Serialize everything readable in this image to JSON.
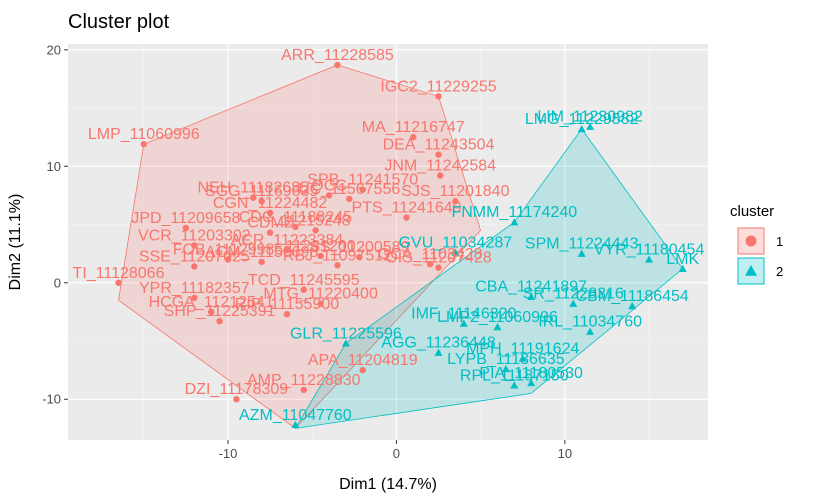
{
  "chart_data": {
    "type": "scatter",
    "title": "Cluster plot",
    "xlabel": "Dim1 (14.7%)",
    "ylabel": "Dim2 (11.1%)",
    "xlim": [
      -19.5,
      18.5
    ],
    "ylim": [
      -13.5,
      20.5
    ],
    "xticks": [
      -10,
      0,
      10
    ],
    "yticks": [
      -10,
      0,
      10,
      20
    ],
    "grid": true,
    "legend": {
      "title": "cluster",
      "position": "right",
      "entries": [
        "1",
        "2"
      ]
    },
    "colors": {
      "1": "#F8766D",
      "2": "#00BFC4"
    },
    "series": [
      {
        "name": "1",
        "points": [
          {
            "x": -3.5,
            "y": 18.7,
            "label": "ARR_11228585"
          },
          {
            "x": 2.5,
            "y": 16.0,
            "label": "IGC2_11229255"
          },
          {
            "x": -15.0,
            "y": 11.9,
            "label": "LMP_11060996"
          },
          {
            "x": 1.0,
            "y": 12.5,
            "label": "MA_11216747"
          },
          {
            "x": 2.5,
            "y": 11.0,
            "label": "DEA_11243504"
          },
          {
            "x": 2.6,
            "y": 9.2,
            "label": "JNM_11242584"
          },
          {
            "x": -2.0,
            "y": 8.0,
            "label": "SPB_11241570"
          },
          {
            "x": -8.5,
            "y": 7.3,
            "label": "NEH_11182685"
          },
          {
            "x": -4.0,
            "y": 7.5,
            "label": "OCC"
          },
          {
            "x": -8.0,
            "y": 7.0,
            "label": "SGG_11169635"
          },
          {
            "x": -2.8,
            "y": 7.2,
            "label": "UC_11567556"
          },
          {
            "x": 3.5,
            "y": 7.0,
            "label": "SJS_11201840"
          },
          {
            "x": -7.5,
            "y": 6.0,
            "label": "CGN_11224482"
          },
          {
            "x": 0.6,
            "y": 5.6,
            "label": "PTS_11241649"
          },
          {
            "x": -6.0,
            "y": 4.8,
            "label": "CDG_11188245"
          },
          {
            "x": -12.5,
            "y": 4.7,
            "label": "JPD_11209658"
          },
          {
            "x": -7.5,
            "y": 4.3,
            "label": "CDM2"
          },
          {
            "x": -4.8,
            "y": 4.5,
            "label": "11215248"
          },
          {
            "x": -12.0,
            "y": 3.2,
            "label": "VCR_11203302"
          },
          {
            "x": -6.5,
            "y": 2.8,
            "label": "ACR_11223384"
          },
          {
            "x": -4.5,
            "y": 2.3,
            "label": "11231200"
          },
          {
            "x": -10.0,
            "y": 2.0,
            "label": "FOB_11129985"
          },
          {
            "x": -8.0,
            "y": 1.8,
            "label": "ACM_11150698"
          },
          {
            "x": -2.2,
            "y": 2.2,
            "label": "SS_11200589"
          },
          {
            "x": -3.5,
            "y": 1.5,
            "label": "RBJ_11097512"
          },
          {
            "x": 2.0,
            "y": 1.6,
            "label": "GCA_1103428"
          },
          {
            "x": 2.5,
            "y": 1.3,
            "label": "OIS_11207428"
          },
          {
            "x": -12.0,
            "y": 1.4,
            "label": "SSE_11207025"
          },
          {
            "x": -16.5,
            "y": 0.0,
            "label": "TI_11128066"
          },
          {
            "x": -5.5,
            "y": -0.6,
            "label": "TCD_11245595"
          },
          {
            "x": -4.5,
            "y": -1.8,
            "label": "MTG_11220400"
          },
          {
            "x": -12.0,
            "y": -1.3,
            "label": "YPR_11182357"
          },
          {
            "x": -11.0,
            "y": -2.5,
            "label": "HCGA_11212541"
          },
          {
            "x": -6.5,
            "y": -2.7,
            "label": "RIP_11155900"
          },
          {
            "x": -10.5,
            "y": -3.3,
            "label": "SHP_11225391"
          },
          {
            "x": -2.0,
            "y": -7.5,
            "label": "APA_11204819"
          },
          {
            "x": -5.5,
            "y": -9.2,
            "label": "AMP_11228830"
          },
          {
            "x": -9.5,
            "y": -10.0,
            "label": "DZI_11178309"
          }
        ],
        "hull": [
          [
            -3.5,
            18.7
          ],
          [
            2.5,
            16.0
          ],
          [
            5.0,
            4.5
          ],
          [
            -6.0,
            -12.5
          ],
          [
            -16.5,
            -1.5
          ],
          [
            -15.0,
            11.9
          ]
        ]
      },
      {
        "name": "2",
        "points": [
          {
            "x": 11.0,
            "y": 13.2,
            "label": "LMG_11229582"
          },
          {
            "x": 11.5,
            "y": 13.4,
            "label": "LIM_11230982"
          },
          {
            "x": 7.0,
            "y": 5.2,
            "label": "FNMM_11174240"
          },
          {
            "x": 11.0,
            "y": 2.5,
            "label": "SPM_11224443"
          },
          {
            "x": 15.0,
            "y": 2.0,
            "label": "VYR_11180454"
          },
          {
            "x": 17.0,
            "y": 1.2,
            "label": "LMK"
          },
          {
            "x": 3.5,
            "y": 2.6,
            "label": "GVU_11034287"
          },
          {
            "x": 8.0,
            "y": -1.2,
            "label": "CBA_11241897"
          },
          {
            "x": 10.5,
            "y": -1.8,
            "label": "SR_11228316"
          },
          {
            "x": 14.0,
            "y": -2.0,
            "label": "CBM_11186454"
          },
          {
            "x": 4.0,
            "y": -3.5,
            "label": "IMF_11146320"
          },
          {
            "x": 11.5,
            "y": -4.2,
            "label": "IRL_11034760"
          },
          {
            "x": 6.0,
            "y": -3.8,
            "label": "LMP2_11060996"
          },
          {
            "x": -3.0,
            "y": -5.2,
            "label": "GLR_11225596"
          },
          {
            "x": 2.5,
            "y": -6.0,
            "label": "AGG_11236448"
          },
          {
            "x": 7.5,
            "y": -6.5,
            "label": "MPH_11191624"
          },
          {
            "x": 6.5,
            "y": -7.4,
            "label": "LYPB_11136635"
          },
          {
            "x": 8.0,
            "y": -8.6,
            "label": "PIA_11180530"
          },
          {
            "x": 7.0,
            "y": -8.8,
            "label": "RPL_11187150"
          },
          {
            "x": -6.0,
            "y": -12.2,
            "label": "AZM_11047760"
          }
        ],
        "hull": [
          [
            11.0,
            13.2
          ],
          [
            17.0,
            1.2
          ],
          [
            8.0,
            -9.5
          ],
          [
            -6.0,
            -12.5
          ],
          [
            -3.0,
            -5.2
          ],
          [
            7.0,
            5.2
          ]
        ]
      }
    ]
  }
}
